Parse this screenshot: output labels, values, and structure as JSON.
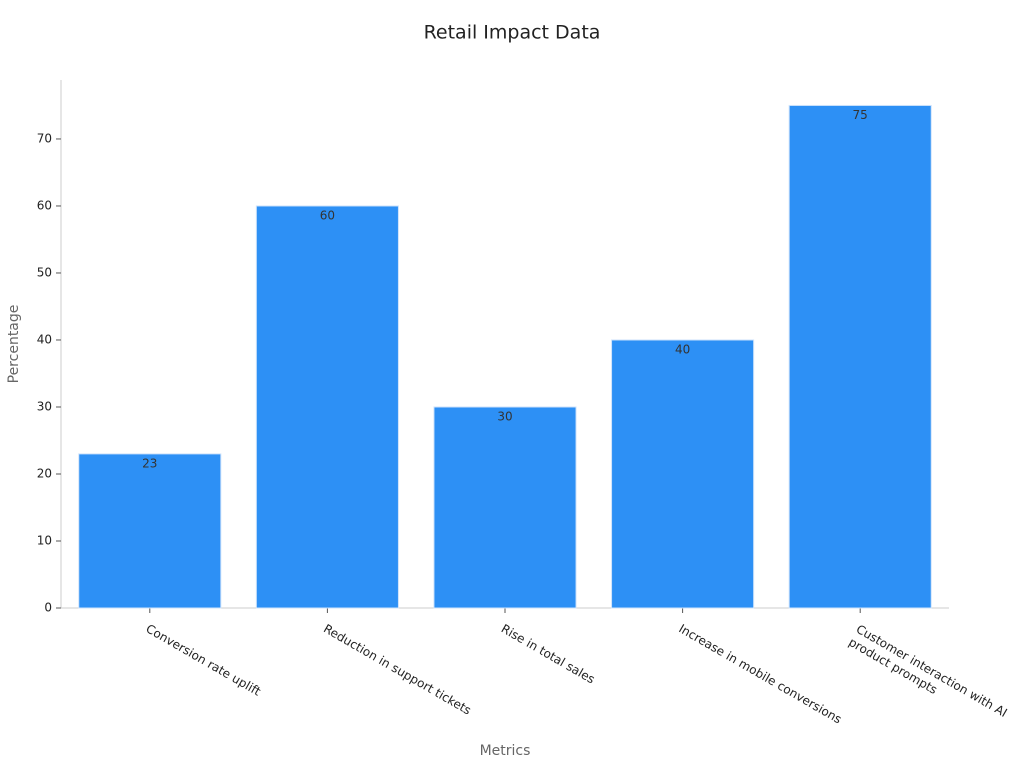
{
  "chart_data": {
    "type": "bar",
    "title": "Retail Impact Data",
    "x_label": "Metrics",
    "y_label": "Percentage",
    "categories": [
      "Conversion rate uplift",
      "Reduction in support tickets",
      "Rise in total sales",
      "Increase in mobile conversions",
      "Customer interaction with AI\nproduct prompts"
    ],
    "values": [
      23,
      60,
      30,
      40,
      75
    ],
    "color": "#2d90f5",
    "ylim": [
      0,
      78.8
    ],
    "yticks": [
      0,
      10,
      20,
      30,
      40,
      50,
      60,
      70
    ],
    "grid": false
  }
}
